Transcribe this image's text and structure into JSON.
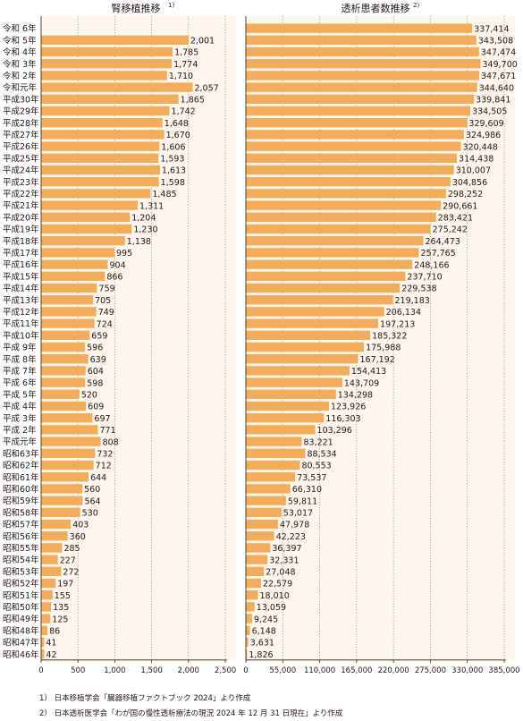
{
  "chart_data": [
    {
      "type": "bar",
      "orientation": "horizontal",
      "title": "腎移植推移",
      "footnote_ref": "1)",
      "categories": [
        "令和 6年",
        "令和 5年",
        "令和 4年",
        "令和 3年",
        "令和 2年",
        "令和元年",
        "平成30年",
        "平成29年",
        "平成28年",
        "平成27年",
        "平成26年",
        "平成25年",
        "平成24年",
        "平成23年",
        "平成22年",
        "平成21年",
        "平成20年",
        "平成19年",
        "平成18年",
        "平成17年",
        "平成16年",
        "平成15年",
        "平成14年",
        "平成13年",
        "平成12年",
        "平成11年",
        "平成10年",
        "平成 9年",
        "平成 8年",
        "平成 7年",
        "平成 6年",
        "平成 5年",
        "平成 4年",
        "平成 3年",
        "平成 2年",
        "平成元年",
        "昭和63年",
        "昭和62年",
        "昭和61年",
        "昭和60年",
        "昭和59年",
        "昭和58年",
        "昭和57年",
        "昭和56年",
        "昭和55年",
        "昭和54年",
        "昭和53年",
        "昭和52年",
        "昭和51年",
        "昭和50年",
        "昭和49年",
        "昭和48年",
        "昭和47年",
        "昭和46年"
      ],
      "values": [
        null,
        2001,
        1785,
        1774,
        1710,
        2057,
        1865,
        1742,
        1648,
        1670,
        1606,
        1593,
        1613,
        1598,
        1485,
        1311,
        1204,
        1230,
        1138,
        995,
        904,
        866,
        759,
        705,
        749,
        724,
        659,
        596,
        639,
        604,
        598,
        520,
        609,
        697,
        771,
        808,
        732,
        712,
        644,
        560,
        564,
        530,
        403,
        360,
        285,
        227,
        272,
        197,
        155,
        135,
        125,
        86,
        41,
        42
      ],
      "value_labels": [
        "",
        "2,001",
        "1,785",
        "1,774",
        "1,710",
        "2,057",
        "1,865",
        "1,742",
        "1,648",
        "1,670",
        "1,606",
        "1,593",
        "1,613",
        "1,598",
        "1,485",
        "1,311",
        "1,204",
        "1,230",
        "1,138",
        "995",
        "904",
        "866",
        "759",
        "705",
        "749",
        "724",
        "659",
        "596",
        "639",
        "604",
        "598",
        "520",
        "609",
        "697",
        "771",
        "808",
        "732",
        "712",
        "644",
        "560",
        "564",
        "530",
        "403",
        "360",
        "285",
        "227",
        "272",
        "197",
        "155",
        "135",
        "125",
        "86",
        "41",
        "42"
      ],
      "xlim": [
        0,
        2500
      ],
      "ticks": [
        0,
        500,
        1000,
        1500,
        2000,
        2500
      ],
      "tick_labels": [
        "0",
        "500",
        "1,000",
        "1,500",
        "2,000",
        "2,500"
      ],
      "grid": "vertical-dotted"
    },
    {
      "type": "bar",
      "orientation": "horizontal",
      "title": "透析患者数推移",
      "footnote_ref": "2)",
      "values": [
        337414,
        343508,
        347474,
        349700,
        347671,
        344640,
        339841,
        334505,
        329609,
        324986,
        320448,
        314438,
        310007,
        304856,
        298252,
        290661,
        283421,
        275242,
        264473,
        257765,
        248166,
        237710,
        229538,
        219183,
        206134,
        197213,
        185322,
        175988,
        167192,
        154413,
        143709,
        134298,
        123926,
        116303,
        103296,
        83221,
        88534,
        80553,
        73537,
        66310,
        59811,
        53017,
        47978,
        42223,
        36397,
        32331,
        27048,
        22579,
        18010,
        13059,
        9245,
        6148,
        3631,
        1826
      ],
      "value_labels": [
        "337,414",
        "343,508",
        "347,474",
        "349,700",
        "347,671",
        "344,640",
        "339,841",
        "334,505",
        "329,609",
        "324,986",
        "320,448",
        "314,438",
        "310,007",
        "304,856",
        "298,252",
        "290,661",
        "283,421",
        "275,242",
        "264,473",
        "257,765",
        "248,166",
        "237,710",
        "229,538",
        "219,183",
        "206,134",
        "197,213",
        "185,322",
        "175,988",
        "167,192",
        "154,413",
        "143,709",
        "134,298",
        "123,926",
        "116,303",
        "103,296",
        "83,221",
        "88,534",
        "80,553",
        "73,537",
        "66,310",
        "59,811",
        "53,017",
        "47,978",
        "42,223",
        "36,397",
        "32,331",
        "27,048",
        "22,579",
        "18,010",
        "13,059",
        "9,245",
        "6,148",
        "3,631",
        "1,826"
      ],
      "xlim": [
        0,
        385000
      ],
      "ticks": [
        0,
        55000,
        110000,
        165000,
        220000,
        275000,
        330000,
        385000
      ],
      "tick_labels": [
        "0",
        "55,000",
        "110,000",
        "165,000",
        "220,000",
        "275,000",
        "330,000",
        "385,000"
      ],
      "grid": "vertical-dotted"
    }
  ],
  "footnotes": [
    "1） 日本移植学会「臓器移植ファクトブック 2024」より作成",
    "2） 日本透析医学会「わが国の慢性透析療法の現況 2024 年 12 月 31 日現在」より作成"
  ],
  "colors": {
    "bar": "#f2ad5c",
    "panel_bg": "#fdf6ec",
    "grid": "#8c8c8c",
    "axis": "#231815"
  }
}
